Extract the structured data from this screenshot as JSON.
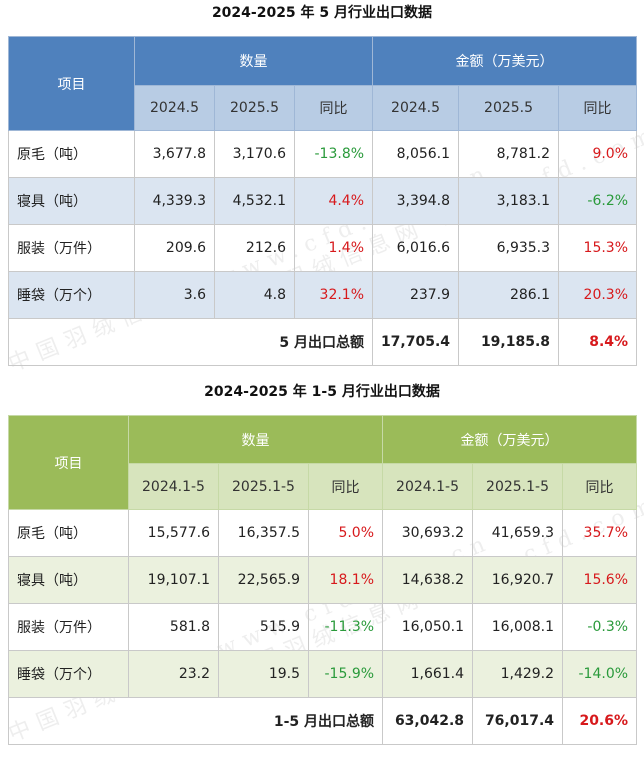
{
  "watermark": "中国羽绒信息网 www.cfd.com.cn",
  "table1": {
    "title": "2024-2025 年 5 月行业出口数据",
    "item_header": "项目",
    "qty_header": "数量",
    "amount_header": "金额（万美元）",
    "sub_headers": [
      "2024.5",
      "2025.5",
      "同比",
      "2024.5",
      "2025.5",
      "同比"
    ],
    "rows": [
      {
        "label": "原毛（吨）",
        "q1": "3,677.8",
        "q2": "3,170.6",
        "q_yoy": "-13.8%",
        "a1": "8,056.1",
        "a2": "8,781.2",
        "a_yoy": "9.0%"
      },
      {
        "label": "寝具（吨）",
        "q1": "4,339.3",
        "q2": "4,532.1",
        "q_yoy": "4.4%",
        "a1": "3,394.8",
        "a2": "3,183.1",
        "a_yoy": "-6.2%"
      },
      {
        "label": "服装（万件）",
        "q1": "209.6",
        "q2": "212.6",
        "q_yoy": "1.4%",
        "a1": "6,016.6",
        "a2": "6,935.3",
        "a_yoy": "15.3%"
      },
      {
        "label": "睡袋（万个）",
        "q1": "3.6",
        "q2": "4.8",
        "q_yoy": "32.1%",
        "a1": "237.9",
        "a2": "286.1",
        "a_yoy": "20.3%"
      }
    ],
    "total_label": "5 月出口总额",
    "total_a1": "17,705.4",
    "total_a2": "19,185.8",
    "total_yoy": "8.4%"
  },
  "table2": {
    "title": "2024-2025 年 1-5 月行业出口数据",
    "item_header": "项目",
    "qty_header": "数量",
    "amount_header": "金额（万美元）",
    "sub_headers": [
      "2024.1-5",
      "2025.1-5",
      "同比",
      "2024.1-5",
      "2025.1-5",
      "同比"
    ],
    "rows": [
      {
        "label": "原毛（吨）",
        "q1": "15,577.6",
        "q2": "16,357.5",
        "q_yoy": "5.0%",
        "a1": "30,693.2",
        "a2": "41,659.3",
        "a_yoy": "35.7%"
      },
      {
        "label": "寝具（吨）",
        "q1": "19,107.1",
        "q2": "22,565.9",
        "q_yoy": "18.1%",
        "a1": "14,638.2",
        "a2": "16,920.7",
        "a_yoy": "15.6%"
      },
      {
        "label": "服装（万件）",
        "q1": "581.8",
        "q2": "515.9",
        "q_yoy": "-11.3%",
        "a1": "16,050.1",
        "a2": "16,008.1",
        "a_yoy": "-0.3%"
      },
      {
        "label": "睡袋（万个）",
        "q1": "23.2",
        "q2": "19.5",
        "q_yoy": "-15.9%",
        "a1": "1,661.4",
        "a2": "1,429.2",
        "a_yoy": "-14.0%"
      }
    ],
    "total_label": "1-5 月出口总额",
    "total_a1": "63,042.8",
    "total_a2": "76,017.4",
    "total_yoy": "20.6%"
  },
  "colors": {
    "negative": "#2a9a3b",
    "positive": "#d7191c",
    "table1_header": "#4f81bd",
    "table2_header": "#9bbb59"
  }
}
